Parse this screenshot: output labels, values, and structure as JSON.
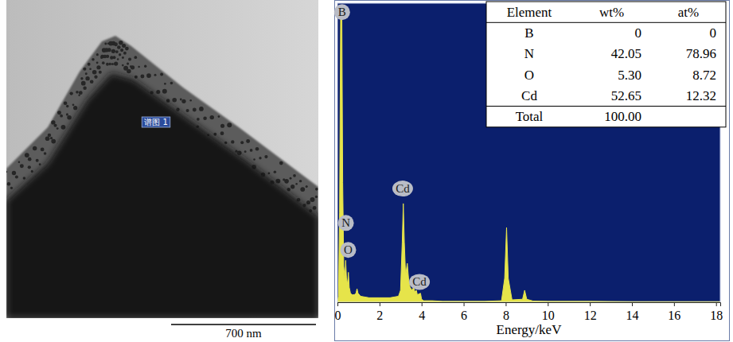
{
  "chart_data": {
    "type": "area",
    "color": "#e6e44a",
    "x": [
      0,
      0.05,
      0.1,
      0.15,
      0.18,
      0.21,
      0.25,
      0.3,
      0.35,
      0.39,
      0.43,
      0.48,
      0.52,
      0.56,
      0.62,
      0.7,
      0.8,
      0.88,
      0.93,
      0.98,
      1.1,
      1.5,
      2,
      2.5,
      2.9,
      3.0,
      3.08,
      3.13,
      3.18,
      3.24,
      3.32,
      3.38,
      3.45,
      3.55,
      3.62,
      3.68,
      3.75,
      3.8,
      3.95,
      4.0,
      4.1,
      4.5,
      5,
      6,
      7,
      7.8,
      7.95,
      8.04,
      8.12,
      8.3,
      8.8,
      8.9,
      9.0,
      9.3,
      10,
      12,
      14,
      16,
      18,
      18.2
    ],
    "values": [
      0,
      2,
      30,
      95,
      99,
      95,
      40,
      12,
      8,
      14,
      8,
      6,
      10,
      5,
      3,
      2.5,
      2.5,
      3,
      4.5,
      3,
      2,
      1.5,
      1.5,
      1.5,
      2,
      4,
      20,
      33,
      20,
      9,
      13,
      8,
      5,
      4,
      5,
      3.5,
      4,
      2.5,
      3,
      1,
      0.5,
      0.5,
      0.3,
      0.3,
      0.3,
      0.5,
      8,
      25,
      8,
      0.8,
      1,
      4,
      1,
      0.4,
      0.3,
      0.3,
      0.2,
      0.2,
      0.2,
      0.2
    ],
    "xlim": [
      0,
      18.2
    ],
    "xticks": [
      0,
      2,
      4,
      6,
      8,
      10,
      12,
      14,
      16,
      18
    ],
    "ylim": [
      0,
      100
    ],
    "tick_labels": "x",
    "x_label": "Energy/keV",
    "annotations": [
      {
        "text": "B",
        "x": 0.22,
        "y": 97
      },
      {
        "text": "N",
        "x": 0.4,
        "y": 26.5
      },
      {
        "text": "O",
        "x": 0.51,
        "y": 17.5
      },
      {
        "text": "Cd",
        "x": 3.1,
        "y": 38
      },
      {
        "text": "Cd",
        "x": 3.9,
        "y": 6.8
      }
    ]
  },
  "table": {
    "columns": [
      "Element",
      "wt%",
      "at%"
    ],
    "rows": [
      [
        "B",
        "0",
        "0"
      ],
      [
        "N",
        "42.05",
        "78.96"
      ],
      [
        "O",
        "5.30",
        "8.72"
      ],
      [
        "Cd",
        "52.65",
        "12.32"
      ],
      [
        "Total",
        "100.00"
      ]
    ]
  },
  "image": {
    "label": "谱图 1",
    "scale_bar": "700 nm"
  }
}
